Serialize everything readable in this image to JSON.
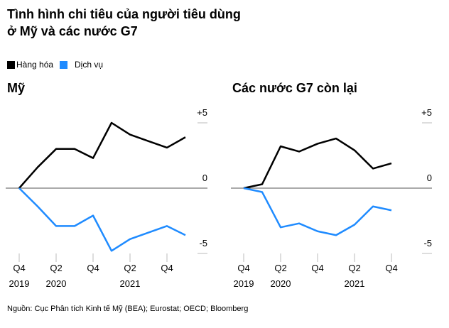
{
  "title": "Tình hình chi tiêu của người tiêu dùng\nở Mỹ và các nước G7",
  "source": "Nguồn: Cục Phân tích Kinh tế Mỹ (BEA); Eurostat; OECD; Bloomberg",
  "chart_data": [
    {
      "type": "line",
      "title": "Mỹ",
      "categories": [
        "Q4\n2019",
        null,
        "Q2\n2020",
        null,
        "Q4",
        null,
        "Q2\n2021",
        null,
        "Q4",
        null
      ],
      "series": [
        {
          "name": "Hàng hóa",
          "color": "#000000",
          "values": [
            0,
            1.6,
            3.0,
            3.0,
            2.3,
            5.0,
            4.1,
            3.6,
            3.1,
            3.9
          ]
        },
        {
          "name": "Dịch vụ",
          "color": "#1f8bff",
          "values": [
            0,
            -1.4,
            -2.9,
            -2.9,
            -2.1,
            -4.8,
            -3.9,
            -3.4,
            -2.9,
            -3.6
          ]
        }
      ],
      "ylim": [
        -5,
        5
      ],
      "yticks": [
        {
          "value": 5,
          "label": "+5"
        },
        0,
        -5
      ]
    },
    {
      "type": "line",
      "title": "Các nước G7 còn lại",
      "categories": [
        "Q4\n2019",
        null,
        "Q2\n2020",
        null,
        "Q4",
        null,
        "Q2\n2021",
        null,
        "Q4"
      ],
      "series": [
        {
          "name": "Hàng hóa",
          "color": "#000000",
          "values": [
            0,
            0.3,
            3.2,
            2.8,
            3.4,
            3.8,
            2.9,
            1.5,
            1.9
          ]
        },
        {
          "name": "Dịch vụ",
          "color": "#1f8bff",
          "values": [
            0,
            -0.3,
            -3.0,
            -2.7,
            -3.3,
            -3.6,
            -2.8,
            -1.4,
            -1.7
          ]
        }
      ],
      "ylim": [
        -5,
        5
      ],
      "yticks": [
        {
          "value": 5,
          "label": "+5"
        },
        0,
        -5
      ]
    }
  ]
}
